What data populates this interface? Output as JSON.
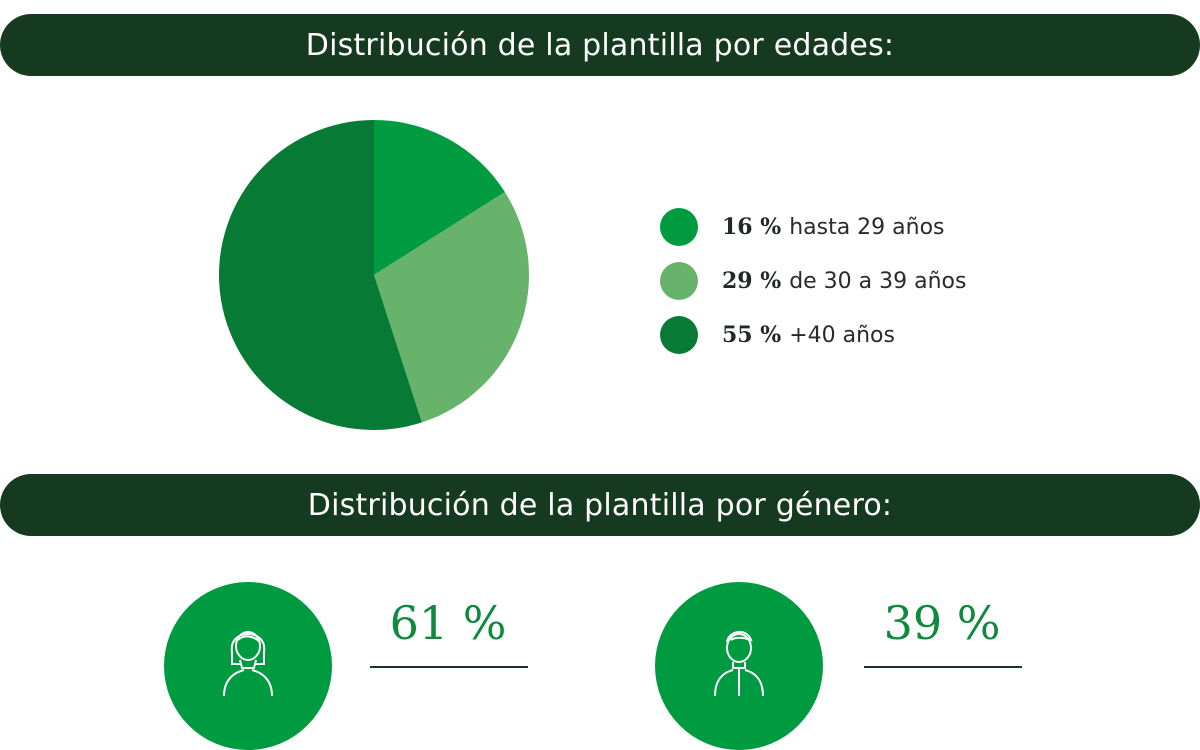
{
  "age_section": {
    "title": "Distribución de la plantilla por edades:"
  },
  "gender_section": {
    "title": "Distribución de la plantilla por género:"
  },
  "chart_data": [
    {
      "type": "pie",
      "title": "Distribución de la plantilla por edades:",
      "slices": [
        {
          "pct_label": "16 %",
          "label": "hasta 29 años",
          "value": 16,
          "color": "#009a40"
        },
        {
          "pct_label": "29 %",
          "label": "de 30 a 39 años",
          "value": 29,
          "color": "#67b36c"
        },
        {
          "pct_label": "55 %",
          "label": "+40 años",
          "value": 55,
          "color": "#077a35"
        }
      ],
      "legend_position": "right"
    },
    {
      "type": "table",
      "title": "Distribución de la plantilla por género:",
      "items": [
        {
          "icon": "woman-icon",
          "pct_label": "61 %",
          "value": 61
        },
        {
          "icon": "man-icon",
          "pct_label": "39 %",
          "value": 39
        }
      ]
    }
  ],
  "colors": {
    "banner": "#163a1f",
    "accent": "#009a40",
    "pct_text": "#0f8a3c"
  }
}
